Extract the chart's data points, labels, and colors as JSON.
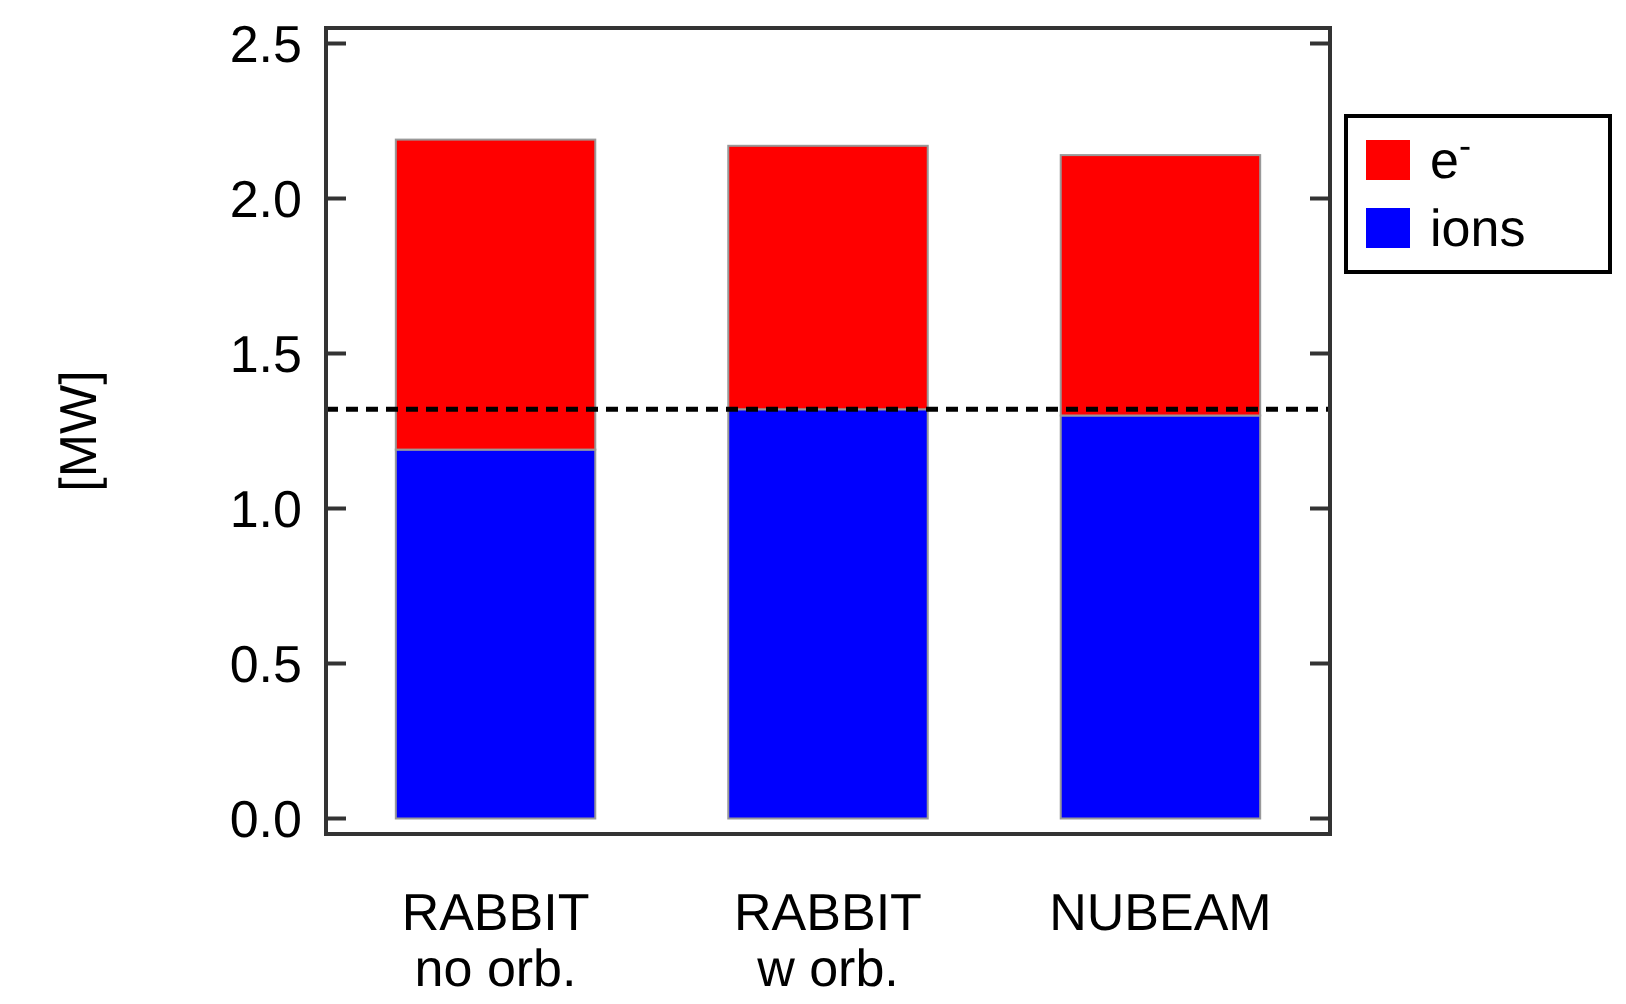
{
  "chart_data": {
    "type": "bar",
    "stacked": true,
    "ylabel": "[MW]",
    "categories": [
      "RABBIT\nno orb.",
      "RABBIT\nw orb.",
      "NUBEAM"
    ],
    "series": [
      {
        "name": "ions",
        "color": "#0000ff",
        "values": [
          1.19,
          1.32,
          1.3
        ]
      },
      {
        "name": "e$^{-}$",
        "color": "#ff0000",
        "values": [
          1.0,
          0.85,
          0.84
        ]
      }
    ],
    "ylim": [
      -0.05,
      2.55
    ],
    "yticks": [
      {
        "value": 0,
        "label": "0.0"
      },
      {
        "value": 0.5,
        "label": "0.5"
      },
      {
        "value": 1,
        "label": "1.0"
      },
      {
        "value": 1.5,
        "label": "1.5"
      },
      {
        "value": 2,
        "label": "2.0"
      },
      {
        "value": 2.5,
        "label": "2.5"
      }
    ],
    "ref_lines": [
      {
        "axis": "y",
        "value": 1.32,
        "color": "#000000",
        "line_style": "dashed"
      }
    ],
    "legend": "top right",
    "grid": false
  }
}
